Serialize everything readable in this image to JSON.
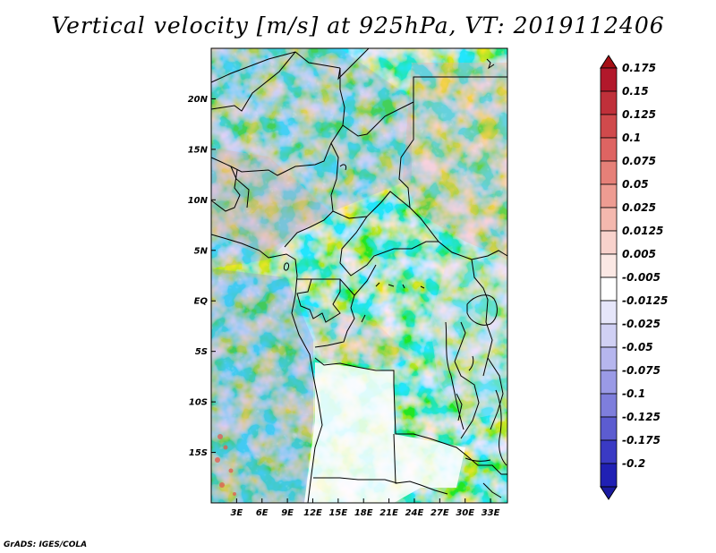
{
  "title": "Vertical velocity [m/s] at 925hPa, VT: 2019112406",
  "credit": "GrADS: IGES/COLA",
  "map": {
    "region": "Central Africa",
    "lon_range": [
      0,
      35
    ],
    "lat_range": [
      -20,
      25
    ],
    "lat_ticks": [
      {
        "value": 20,
        "label": "20N"
      },
      {
        "value": 15,
        "label": "15N"
      },
      {
        "value": 10,
        "label": "10N"
      },
      {
        "value": 5,
        "label": "5N"
      },
      {
        "value": 0,
        "label": "EQ"
      },
      {
        "value": -5,
        "label": "5S"
      },
      {
        "value": -10,
        "label": "10S"
      },
      {
        "value": -15,
        "label": "15S"
      }
    ],
    "lon_ticks": [
      {
        "value": 3,
        "label": "3E"
      },
      {
        "value": 6,
        "label": "6E"
      },
      {
        "value": 9,
        "label": "9E"
      },
      {
        "value": 12,
        "label": "12E"
      },
      {
        "value": 15,
        "label": "15E"
      },
      {
        "value": 18,
        "label": "18E"
      },
      {
        "value": 21,
        "label": "21E"
      },
      {
        "value": 24,
        "label": "24E"
      },
      {
        "value": 27,
        "label": "27E"
      },
      {
        "value": 30,
        "label": "30E"
      },
      {
        "value": 33,
        "label": "33E"
      }
    ]
  },
  "colorbar": {
    "levels": [
      {
        "label": "0.175",
        "color": "#b2182b"
      },
      {
        "label": "0.15",
        "color": "#c0303a"
      },
      {
        "label": "0.125",
        "color": "#d04a4c"
      },
      {
        "label": "0.1",
        "color": "#de6462"
      },
      {
        "label": "0.075",
        "color": "#e68078"
      },
      {
        "label": "0.05",
        "color": "#ee9c92"
      },
      {
        "label": "0.025",
        "color": "#f4b8ae"
      },
      {
        "label": "0.0125",
        "color": "#f8d2cc"
      },
      {
        "label": "0.005",
        "color": "#fbe8e4"
      },
      {
        "label": "-0.005",
        "color": "#ffffff"
      },
      {
        "label": "-0.0125",
        "color": "#e6e6fa"
      },
      {
        "label": "-0.025",
        "color": "#d0d0f4"
      },
      {
        "label": "-0.05",
        "color": "#b6b6ee"
      },
      {
        "label": "-0.075",
        "color": "#9a9ae6"
      },
      {
        "label": "-0.1",
        "color": "#7e7edc"
      },
      {
        "label": "-0.125",
        "color": "#5c5cd0"
      },
      {
        "label": "-0.175",
        "color": "#3a3ac4"
      },
      {
        "label": "-0.2",
        "color": "#2020b4"
      }
    ],
    "top_color": "#a50f15",
    "bottom_color": "#1a1aa0"
  }
}
